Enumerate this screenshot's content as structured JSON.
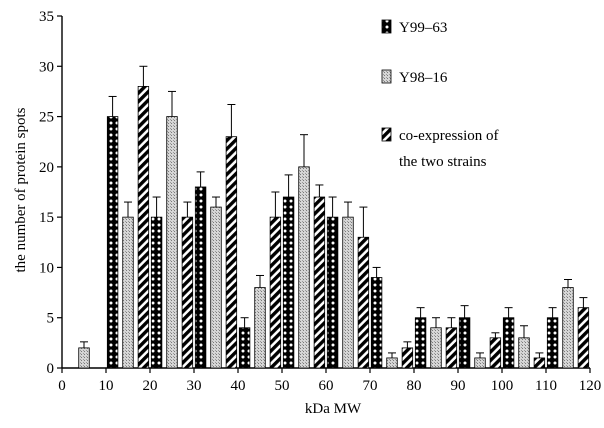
{
  "chart_data": {
    "type": "bar",
    "title": "",
    "xlabel": "kDa MW",
    "ylabel": "the number of protein spots",
    "xlim": [
      0,
      120
    ],
    "ylim": [
      0,
      35
    ],
    "xticks": [
      0,
      10,
      20,
      30,
      40,
      50,
      60,
      70,
      80,
      90,
      100,
      110,
      120
    ],
    "yticks": [
      0,
      5,
      10,
      15,
      20,
      25,
      30,
      35
    ],
    "grid": false,
    "legend_position": "top-right",
    "x": [
      5,
      15,
      25,
      35,
      45,
      55,
      65,
      75,
      85,
      95,
      105,
      115
    ],
    "series": [
      {
        "name": "Y99–63",
        "pattern": "black-with-white-dots",
        "values": [
          0,
          25,
          15,
          18,
          4,
          17,
          15,
          9,
          5,
          5,
          5,
          5
        ],
        "errors": [
          0,
          2,
          2,
          1.5,
          1,
          2.2,
          2,
          1,
          1,
          1.2,
          1,
          1
        ]
      },
      {
        "name": "Y98–16",
        "pattern": "light-gray-dotted",
        "values": [
          2,
          15,
          25,
          16,
          8,
          20,
          15,
          1,
          4,
          1,
          3,
          8
        ],
        "errors": [
          0.6,
          1.5,
          2.5,
          1,
          1.2,
          3.2,
          1.5,
          0.5,
          1,
          0.5,
          1.2,
          0.8
        ]
      },
      {
        "name": "co-expression of the two strains",
        "pattern": "black-diagonal-stripes",
        "values": [
          0,
          28,
          15,
          23,
          15,
          17,
          13,
          2,
          4,
          3,
          1,
          6
        ],
        "errors": [
          0,
          2,
          1.5,
          3.2,
          2.5,
          1.2,
          3,
          0.6,
          1,
          0.5,
          0.5,
          1
        ]
      }
    ],
    "legend_lines": [
      [
        "Y99–63"
      ],
      [
        "Y98–16"
      ],
      [
        "co-expression of",
        "the two strains"
      ]
    ]
  }
}
